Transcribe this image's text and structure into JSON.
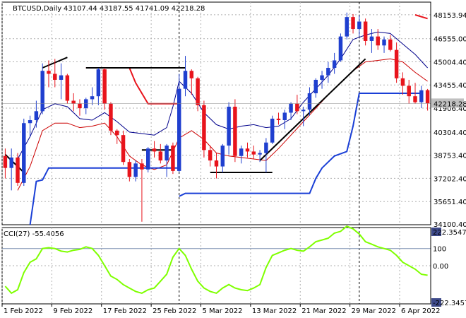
{
  "header": {
    "symbol_line": "BTCUSD,Daily",
    "ohlc_line": "43107.44 43187.55 41741.09 42218.28"
  },
  "colors": {
    "bull": "#1f3fcf",
    "bear": "#e8141c",
    "upper_band": "#00008b",
    "lower_band": "#cc0000",
    "stop_blue": "#1a3fd6",
    "stop_red": "#e8141c",
    "trendline": "#000000",
    "cci_line": "#7fff00",
    "grid": "#b0b0b0",
    "price_tag_bg": "#c0c0c0",
    "cci_tag_bg": "#3e4a8a"
  },
  "chart_data": [
    {
      "type": "candlestick",
      "title": "BTCUSD,Daily",
      "ylim": [
        34100.4,
        49000
      ],
      "y_ticks": [
        "48153.94",
        "46555.00",
        "45004.40",
        "43455.40",
        "41906.40",
        "40304.40",
        "38753.40",
        "37202.40",
        "35651.40",
        "34100.40"
      ],
      "last_price": "42218.28",
      "x_labels": [
        "1 Feb 2022",
        "9 Feb 2022",
        "17 Feb 2022",
        "25 Feb 2022",
        "5 Mar 2022",
        "13 Mar 2022",
        "21 Mar 2022",
        "29 Mar 2022",
        "6 Apr 2022"
      ],
      "x_label_index": [
        0,
        8,
        16,
        24,
        32,
        40,
        48,
        56,
        64
      ],
      "candles": [
        [
          38700,
          39200,
          37200,
          37900
        ],
        [
          37900,
          39200,
          36400,
          38600
        ],
        [
          38600,
          38900,
          36700,
          36900
        ],
        [
          36900,
          41200,
          36700,
          40900
        ],
        [
          40900,
          41400,
          40000,
          41100
        ],
        [
          41100,
          42400,
          40600,
          41700
        ],
        [
          41700,
          44900,
          41500,
          44400
        ],
        [
          44400,
          45100,
          43300,
          44200
        ],
        [
          44200,
          45200,
          43300,
          43800
        ],
        [
          43800,
          44900,
          42500,
          44100
        ],
        [
          44100,
          44200,
          42200,
          42400
        ],
        [
          42400,
          42900,
          41700,
          42200
        ],
        [
          42200,
          42500,
          41400,
          41900
        ],
        [
          41900,
          42600,
          41500,
          42500
        ],
        [
          42500,
          43300,
          42100,
          42700
        ],
        [
          42700,
          44600,
          42100,
          44500
        ],
        [
          44500,
          44600,
          41800,
          42200
        ],
        [
          42200,
          42300,
          40100,
          40400
        ],
        [
          40400,
          40500,
          39500,
          40100
        ],
        [
          40100,
          40400,
          38100,
          38300
        ],
        [
          38300,
          38500,
          37000,
          37300
        ],
        [
          37300,
          38400,
          37000,
          38200
        ],
        [
          38200,
          38500,
          34300,
          37800
        ],
        [
          37800,
          39300,
          37600,
          39200
        ],
        [
          39200,
          39700,
          38600,
          39000
        ],
        [
          39000,
          39500,
          38200,
          38400
        ],
        [
          38400,
          39500,
          37300,
          39400
        ],
        [
          39400,
          39600,
          37500,
          37700
        ],
        [
          37700,
          44200,
          37600,
          43200
        ],
        [
          43200,
          45400,
          42700,
          44400
        ],
        [
          44400,
          44500,
          42800,
          43900
        ],
        [
          43900,
          44000,
          41700,
          42100
        ],
        [
          42100,
          42400,
          38600,
          39100
        ],
        [
          39100,
          39400,
          38000,
          38400
        ],
        [
          38400,
          38900,
          37200,
          38000
        ],
        [
          38000,
          39500,
          37600,
          39400
        ],
        [
          39400,
          42300,
          38800,
          42000
        ],
        [
          42000,
          42500,
          38300,
          38700
        ],
        [
          38700,
          39400,
          38200,
          39200
        ],
        [
          39200,
          39600,
          38600,
          39000
        ],
        [
          39000,
          39400,
          38500,
          38800
        ],
        [
          38800,
          39100,
          38300,
          38900
        ],
        [
          38900,
          39900,
          37600,
          39600
        ],
        [
          39600,
          41400,
          39500,
          41200
        ],
        [
          41200,
          41600,
          40800,
          41100
        ],
        [
          41100,
          41800,
          40500,
          41600
        ],
        [
          41600,
          42300,
          41100,
          42200
        ],
        [
          42200,
          42800,
          41500,
          41700
        ],
        [
          41700,
          42000,
          40700,
          41800
        ],
        [
          41800,
          43300,
          41400,
          42900
        ],
        [
          42900,
          43900,
          42600,
          43800
        ],
        [
          43800,
          44400,
          43200,
          44100
        ],
        [
          44100,
          45000,
          43600,
          44600
        ],
        [
          44600,
          45600,
          44200,
          45100
        ],
        [
          45100,
          46900,
          45000,
          46700
        ],
        [
          46700,
          48300,
          46500,
          48000
        ],
        [
          48000,
          48200,
          46900,
          47200
        ],
        [
          47200,
          48100,
          46700,
          47700
        ],
        [
          47700,
          47900,
          46100,
          46400
        ],
        [
          46400,
          47200,
          45600,
          46700
        ],
        [
          46700,
          47200,
          45800,
          46100
        ],
        [
          46100,
          46700,
          45600,
          46500
        ],
        [
          46500,
          46800,
          45700,
          45800
        ],
        [
          45800,
          46300,
          43600,
          43900
        ],
        [
          43900,
          44300,
          42800,
          43400
        ],
        [
          43400,
          43800,
          42200,
          42700
        ],
        [
          42700,
          43600,
          42200,
          42300
        ],
        [
          42300,
          43400,
          41900,
          43100
        ],
        [
          43107.44,
          43187.55,
          41741.09,
          42218.28
        ]
      ],
      "upper_band": [
        [
          2,
          38500
        ],
        [
          4,
          40000
        ],
        [
          6,
          41800
        ],
        [
          8,
          42200
        ],
        [
          10,
          42000
        ],
        [
          12,
          41200
        ],
        [
          14,
          41100
        ],
        [
          16,
          41600
        ],
        [
          18,
          41000
        ],
        [
          20,
          40300
        ],
        [
          22,
          40200
        ],
        [
          24,
          40100
        ],
        [
          26,
          40600
        ],
        [
          27,
          42000
        ],
        [
          28,
          43700
        ],
        [
          30,
          42900
        ],
        [
          32,
          41600
        ],
        [
          34,
          40800
        ],
        [
          36,
          40500
        ],
        [
          38,
          40700
        ],
        [
          40,
          40800
        ],
        [
          42,
          40600
        ],
        [
          44,
          40700
        ],
        [
          46,
          41200
        ],
        [
          48,
          42300
        ],
        [
          50,
          43200
        ],
        [
          52,
          44100
        ],
        [
          54,
          45200
        ],
        [
          56,
          46500
        ],
        [
          58,
          46800
        ],
        [
          60,
          47000
        ],
        [
          62,
          46900
        ],
        [
          64,
          46200
        ],
        [
          66,
          45500
        ],
        [
          68,
          44600
        ]
      ],
      "lower_band": [
        [
          2,
          36400
        ],
        [
          4,
          38000
        ],
        [
          6,
          40400
        ],
        [
          8,
          40900
        ],
        [
          10,
          40900
        ],
        [
          12,
          40600
        ],
        [
          14,
          40700
        ],
        [
          16,
          40900
        ],
        [
          18,
          40000
        ],
        [
          20,
          38700
        ],
        [
          22,
          38100
        ],
        [
          24,
          37800
        ],
        [
          26,
          38100
        ],
        [
          28,
          39900
        ],
        [
          30,
          40400
        ],
        [
          32,
          39800
        ],
        [
          34,
          38900
        ],
        [
          36,
          38700
        ],
        [
          38,
          38600
        ],
        [
          40,
          38500
        ],
        [
          42,
          38400
        ],
        [
          44,
          39200
        ],
        [
          46,
          40100
        ],
        [
          48,
          41000
        ],
        [
          50,
          41900
        ],
        [
          52,
          42800
        ],
        [
          54,
          43600
        ],
        [
          56,
          44400
        ],
        [
          58,
          45000
        ],
        [
          60,
          45100
        ],
        [
          62,
          45200
        ],
        [
          64,
          45000
        ],
        [
          66,
          44300
        ],
        [
          68,
          43700
        ]
      ],
      "stop_blue_segments": [
        [
          [
            4,
            34100
          ],
          [
            5,
            37000
          ],
          [
            6,
            37100
          ],
          [
            7,
            37900
          ],
          [
            28,
            37900
          ]
        ],
        [
          [
            28,
            36000
          ],
          [
            29,
            36200
          ],
          [
            49,
            36200
          ],
          [
            50,
            37200
          ],
          [
            51,
            37900
          ],
          [
            53,
            38700
          ],
          [
            55,
            39000
          ],
          [
            56,
            40700
          ],
          [
            57,
            42900
          ],
          [
            67,
            42900
          ]
        ]
      ],
      "stop_red_segments": [
        [
          [
            13,
            44600
          ],
          [
            20,
            44600
          ],
          [
            21,
            43600
          ],
          [
            23,
            42200
          ],
          [
            28,
            42200
          ]
        ],
        [
          [
            66,
            48150
          ],
          [
            68,
            47900
          ]
        ]
      ],
      "trendlines": [
        [
          [
            6,
            44600
          ],
          [
            10,
            45300
          ]
        ],
        [
          [
            13,
            44600
          ],
          [
            29,
            44600
          ]
        ],
        [
          [
            0,
            38800
          ],
          [
            3,
            37600
          ]
        ],
        [
          [
            22,
            39100
          ],
          [
            27,
            39100
          ]
        ],
        [
          [
            33,
            37600
          ],
          [
            43,
            37600
          ]
        ],
        [
          [
            41,
            38400
          ],
          [
            58,
            45200
          ]
        ]
      ],
      "vlines_at_index": [
        28,
        57
      ]
    },
    {
      "type": "line",
      "title": "CCI(27) -55.4056",
      "ylim": [
        -222.3457,
        222.3547
      ],
      "y_ticks": [
        "222.3547",
        "100",
        "0.00",
        "-222.3457"
      ],
      "levels": [
        100,
        0
      ],
      "series": [
        {
          "name": "CCI(27)",
          "values": [
            -120,
            -160,
            -140,
            -40,
            20,
            40,
            100,
            105,
            100,
            85,
            80,
            90,
            95,
            110,
            100,
            60,
            0,
            -60,
            -80,
            -110,
            -130,
            -150,
            -160,
            -140,
            -130,
            -90,
            -50,
            50,
            100,
            60,
            -20,
            -90,
            -130,
            -150,
            -160,
            -130,
            -110,
            -130,
            -140,
            -145,
            -130,
            -110,
            -10,
            60,
            75,
            90,
            100,
            90,
            85,
            110,
            140,
            150,
            160,
            190,
            200,
            230,
            215,
            185,
            140,
            125,
            110,
            100,
            90,
            60,
            20,
            0,
            -20,
            -50,
            -55.4056
          ]
        }
      ]
    }
  ]
}
